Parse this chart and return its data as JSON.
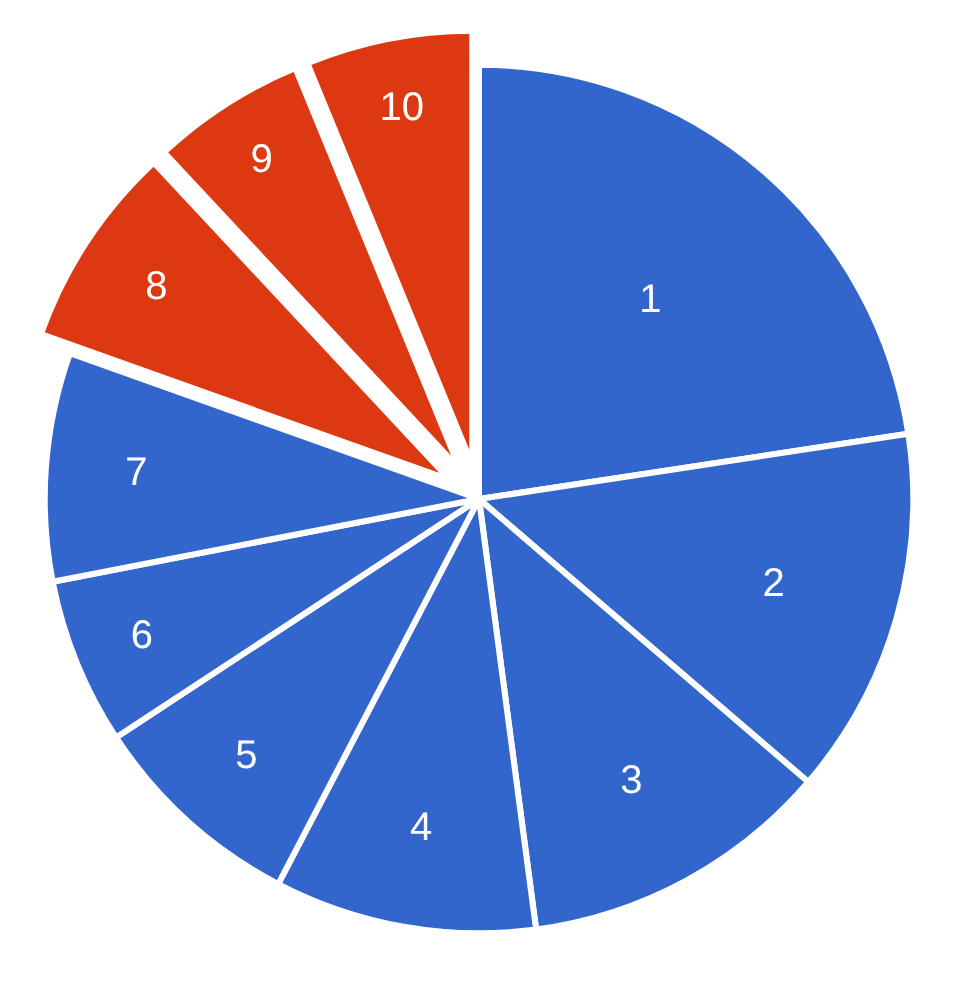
{
  "chart_data": {
    "type": "pie",
    "categories": [
      "1",
      "2",
      "3",
      "4",
      "5",
      "6",
      "7",
      "8",
      "9",
      "10"
    ],
    "values": [
      22.6,
      13.7,
      11.6,
      9.75,
      8.1,
      6.2,
      8.5,
      7.6,
      5.75,
      6.2
    ],
    "colors": [
      "#3366cc",
      "#3366cc",
      "#3366cc",
      "#3366cc",
      "#3366cc",
      "#3366cc",
      "#3366cc",
      "#dc3912",
      "#dc3912",
      "#dc3912"
    ],
    "legend": false
  }
}
